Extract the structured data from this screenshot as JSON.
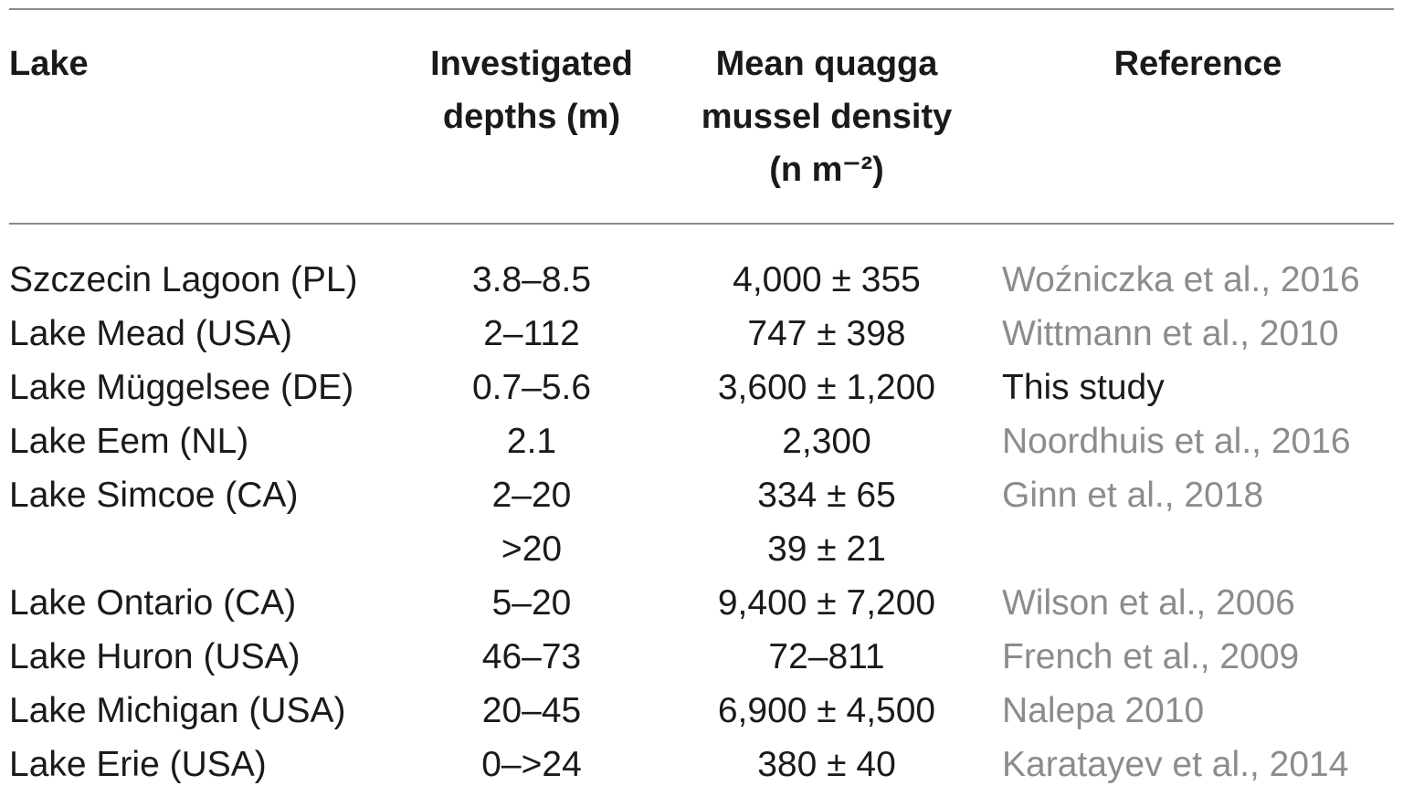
{
  "table": {
    "header": [
      {
        "lines": [
          "Lake"
        ]
      },
      {
        "lines": [
          "Investigated",
          "depths (m)"
        ]
      },
      {
        "lines": [
          "Mean quagga",
          "mussel density",
          "(n m⁻²)"
        ]
      },
      {
        "lines": [
          "Reference"
        ]
      }
    ],
    "rows": [
      [
        "Szczecin Lagoon (PL)",
        "3.8–8.5",
        "4,000 ± 355",
        "Woźniczka et al., 2016"
      ],
      [
        "Lake Mead (USA)",
        "2–112",
        "747 ± 398",
        "Wittmann et al., 2010"
      ],
      [
        "Lake Müggelsee (DE)",
        "0.7–5.6",
        "3,600 ± 1,200",
        "This study"
      ],
      [
        "Lake Eem (NL)",
        "2.1",
        "2,300",
        "Noordhuis et al., 2016"
      ],
      [
        "Lake Simcoe (CA)",
        "2–20",
        "334 ± 65",
        "Ginn et al., 2018"
      ],
      [
        null,
        ">20",
        "39 ± 21",
        null
      ],
      [
        "Lake Ontario (CA)",
        "5–20",
        "9,400 ± 7,200",
        "Wilson et al., 2006"
      ],
      [
        "Lake Huron (USA)",
        "46–73",
        "72–811",
        "French et al., 2009"
      ],
      [
        "Lake Michigan (USA)",
        "20–45",
        "6,900 ± 4,500",
        "Nalepa 2010"
      ],
      [
        "Lake Erie (USA)",
        "0–>24",
        "380 ± 40",
        "Karatayev et al., 2014"
      ]
    ]
  }
}
